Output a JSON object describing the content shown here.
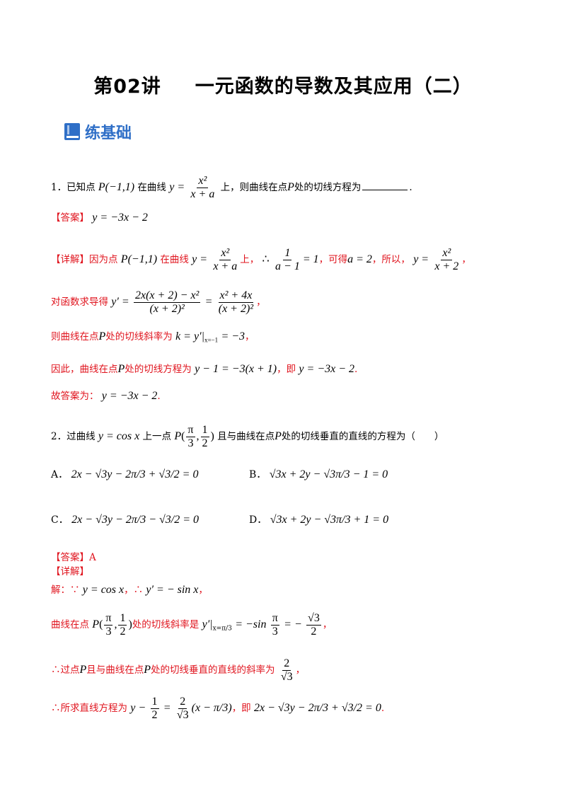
{
  "title": {
    "part1": "第02讲",
    "part2": "一元函数的导数及其应用（二）"
  },
  "section": {
    "label": "练基础"
  },
  "q1": {
    "num": "1．",
    "text_a": "已知点",
    "point": "P(−1,1)",
    "text_b": "在曲线",
    "curve_lhs": "y =",
    "curve_num": "x²",
    "curve_den": "x + a",
    "text_c": "上，则曲线在点",
    "P": "P",
    "text_d": "处的切线方程为",
    "end": ".",
    "answer_label": "【答案】",
    "answer": "y = −3x − 2",
    "detail_label": "【详解】",
    "d1_a": "因为点",
    "d1_point": "P(−1,1)",
    "d1_b": "在曲线",
    "d1_lhs": "y =",
    "d1_num": "x²",
    "d1_den": "x + a",
    "d1_c": "上，",
    "d1_therefore": "∴",
    "d1_f_num": "1",
    "d1_f_den": "a − 1",
    "d1_f_rhs": "= 1",
    "d1_d": "，可得",
    "d1_a2": "a = 2",
    "d1_e": "，所以，",
    "d1_y": "y =",
    "d1_y_num": "x²",
    "d1_y_den": "x + 2",
    "d1_f": "，",
    "d2_text": "对函数求导得",
    "d2_lhs": "y′ =",
    "d2_num1": "2x(x + 2) − x²",
    "d2_den1": "(x + 2)²",
    "d2_eq": "=",
    "d2_num2": "x² + 4x",
    "d2_den2": "(x + 2)²",
    "d2_end": "，",
    "d3_text": "则曲线在点",
    "d3_P": "P",
    "d3_text2": "处的切线斜率为",
    "d3_math": "k = y′|",
    "d3_sub": "x=−1",
    "d3_rhs": "= −3",
    "d3_end": "，",
    "d4_text": "因此，曲线在点",
    "d4_P": "P",
    "d4_text2": "处的切线方程为",
    "d4_math": "y − 1 = −3(x + 1)",
    "d4_text3": "，即",
    "d4_math2": "y = −3x − 2",
    "d4_end": ".",
    "d5_text": "故答案为：",
    "d5_math": "y = −3x − 2",
    "d5_end": "."
  },
  "q2": {
    "num": "2．",
    "text_a": "过曲线",
    "curve": "y = cos x",
    "text_b": "上一点",
    "P": "P",
    "pt_num1": "π",
    "pt_den1": "3",
    "pt_num2": "1",
    "pt_den2": "2",
    "text_c": "且与曲线在点",
    "P2": "P",
    "text_d": "处的切线垂直的直线的方程为（　　）",
    "options": [
      {
        "label": "A．",
        "math": "2x − √3y − 2π/3 + √3/2 = 0"
      },
      {
        "label": "B．",
        "math": "√3x + 2y − √3π/3 − 1 = 0"
      },
      {
        "label": "C．",
        "math": "2x − √3y − 2π/3 − √3/2 = 0"
      },
      {
        "label": "D．",
        "math": "√3x + 2y − √3π/3 + 1 = 0"
      }
    ],
    "answer_label": "【答案】A",
    "detail_label": "【详解】",
    "s1_text": "解：",
    "s1_because": "∵",
    "s1_math": "y = cos x",
    "s1_sep": "，",
    "s1_therefore": "∴",
    "s1_math2": "y′ = − sin x",
    "s1_end": "，",
    "s2_text": "曲线在点",
    "s2_text2": "处的切线斜率是",
    "s2_math": "y′|",
    "s2_sub": "x=π/3",
    "s2_rhs": "= −sin",
    "s2_pi": "π",
    "s2_3": "3",
    "s2_eq": "= −",
    "s2_r3": "√3",
    "s2_2": "2",
    "s2_end": "，",
    "s3_therefore": "∴",
    "s3_text": "过点",
    "s3_P": "P",
    "s3_text2": "且与曲线在点",
    "s3_P2": "P",
    "s3_text3": "处的切线垂直的直线的斜率为",
    "s3_num": "2",
    "s3_den": "√3",
    "s3_end": "，",
    "s4_therefore": "∴",
    "s4_text": "所求直线方程为",
    "s4_lhs": "y −",
    "s4_h_num": "1",
    "s4_h_den": "2",
    "s4_eq": "=",
    "s4_k_num": "2",
    "s4_k_den": "√3",
    "s4_paren": "(x − π/3)",
    "s4_text2": "，即",
    "s4_final": "2x − √3y − 2π/3 + √3/2 = 0",
    "s4_end": "."
  }
}
